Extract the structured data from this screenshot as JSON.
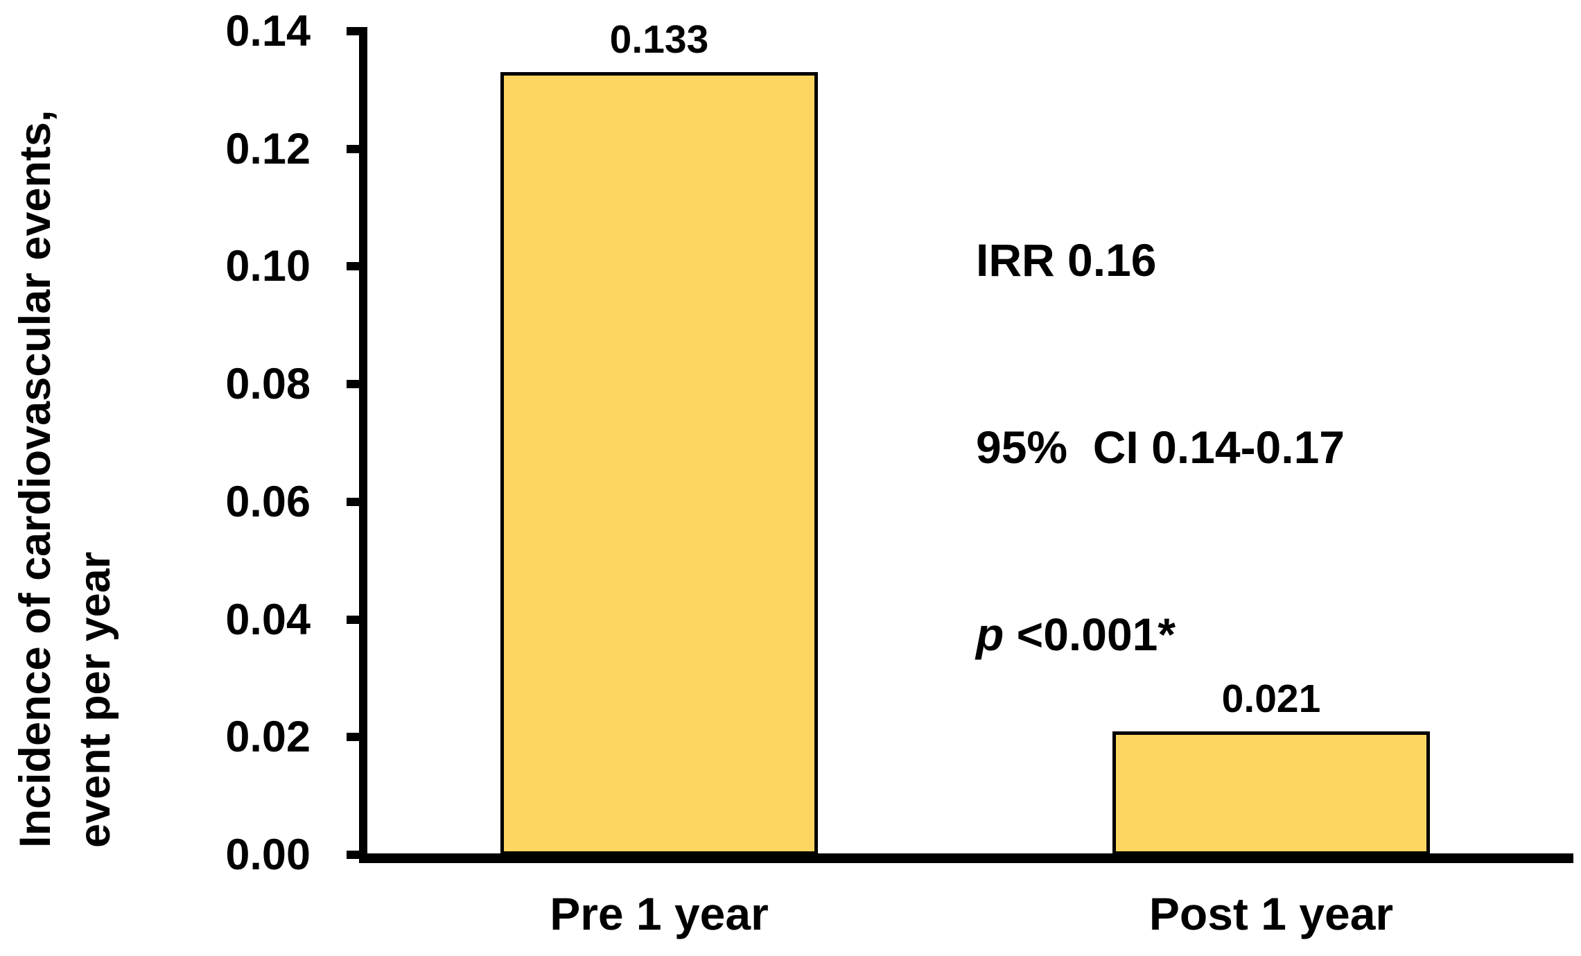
{
  "chart_data": {
    "type": "bar",
    "title": "",
    "categories": [
      "Pre 1 year",
      "Post 1 year"
    ],
    "values": [
      0.133,
      0.021
    ],
    "bar_labels": [
      "0.133",
      "0.021"
    ],
    "ylabel_line1": "Incidence of cardiovascular events,",
    "ylabel_line2": "event per year",
    "xlabel": "",
    "ylim": [
      0,
      0.14
    ],
    "ytick_labels": [
      "0.14",
      "0.12",
      "0.10",
      "0.08",
      "0.06",
      "0.04",
      "0.02",
      "0.00"
    ],
    "grid": false,
    "legend": "none",
    "bar_fill_color": "#FDD661",
    "bar_border_color": "#000000",
    "axis_color": "#000000",
    "annotation": {
      "line1": "IRR 0.16",
      "line2": "95%  CI 0.14-0.17",
      "line3_italic": "p",
      "line3_rest": " <0.001*"
    }
  }
}
